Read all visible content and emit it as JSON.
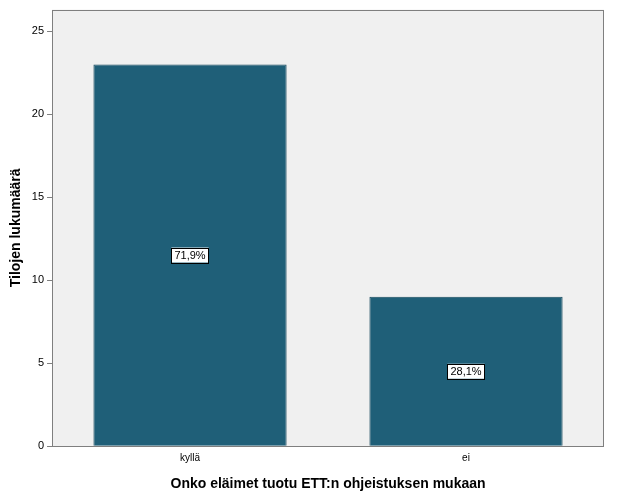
{
  "chart_data": {
    "type": "bar",
    "x_label": "Onko eläimet tuotu ETT:n ohjeistuksen mukaan",
    "y_label": "Tilojen lukumäärä",
    "categories": [
      "kyllä",
      "ei"
    ],
    "values": [
      23,
      9
    ],
    "annotations": [
      "71,9%",
      "28,1%"
    ],
    "color": "#1f5f78",
    "ylim": [
      0,
      26.3
    ],
    "yticks": [
      0,
      5,
      10,
      15,
      20,
      25
    ],
    "grid": false
  }
}
